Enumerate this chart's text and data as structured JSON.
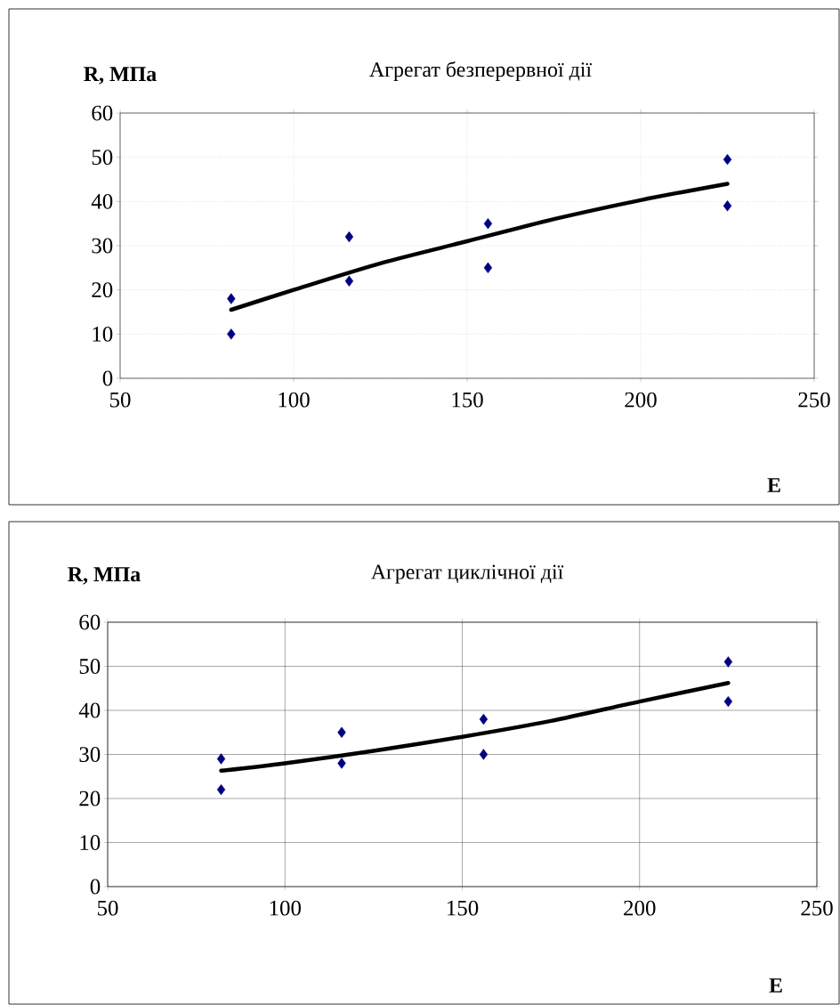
{
  "chart_data": [
    {
      "type": "scatter",
      "title": "Агрегат безперервної дії",
      "ylabel": "R, МПа",
      "xlabel": "E",
      "xlim": [
        50,
        250
      ],
      "ylim": [
        0,
        60
      ],
      "xticks": [
        50,
        100,
        150,
        200,
        250
      ],
      "yticks": [
        0,
        10,
        20,
        30,
        40,
        50,
        60
      ],
      "grid": true,
      "series": [
        {
          "marker": "diamond",
          "color": "#000080",
          "x": [
            82,
            82,
            116,
            116,
            156,
            156,
            225,
            225
          ],
          "values": [
            18,
            10,
            32,
            22,
            35,
            25,
            49.5,
            39
          ]
        },
        {
          "type": "line",
          "marker": "none",
          "color": "#000000",
          "x": [
            82,
            100,
            125,
            150,
            175,
            200,
            225
          ],
          "values": [
            15.5,
            20,
            26,
            31,
            36,
            40.3,
            44
          ]
        }
      ]
    },
    {
      "type": "scatter",
      "title": "Агрегат циклічної дії",
      "ylabel": "R, МПа",
      "xlabel": "E",
      "xlim": [
        50,
        250
      ],
      "ylim": [
        0,
        60
      ],
      "xticks": [
        50,
        100,
        150,
        200,
        250
      ],
      "yticks": [
        0,
        10,
        20,
        30,
        40,
        50,
        60
      ],
      "grid": true,
      "series": [
        {
          "marker": "diamond",
          "color": "#000080",
          "x": [
            82,
            82,
            116,
            116,
            156,
            156,
            225,
            225
          ],
          "values": [
            29,
            22,
            35,
            28,
            38,
            30,
            51,
            42
          ]
        },
        {
          "type": "line",
          "marker": "none",
          "color": "#000000",
          "x": [
            82,
            100,
            125,
            150,
            175,
            200,
            225
          ],
          "values": [
            26.3,
            28,
            30.8,
            34,
            37.6,
            42,
            46.2
          ]
        }
      ]
    }
  ]
}
